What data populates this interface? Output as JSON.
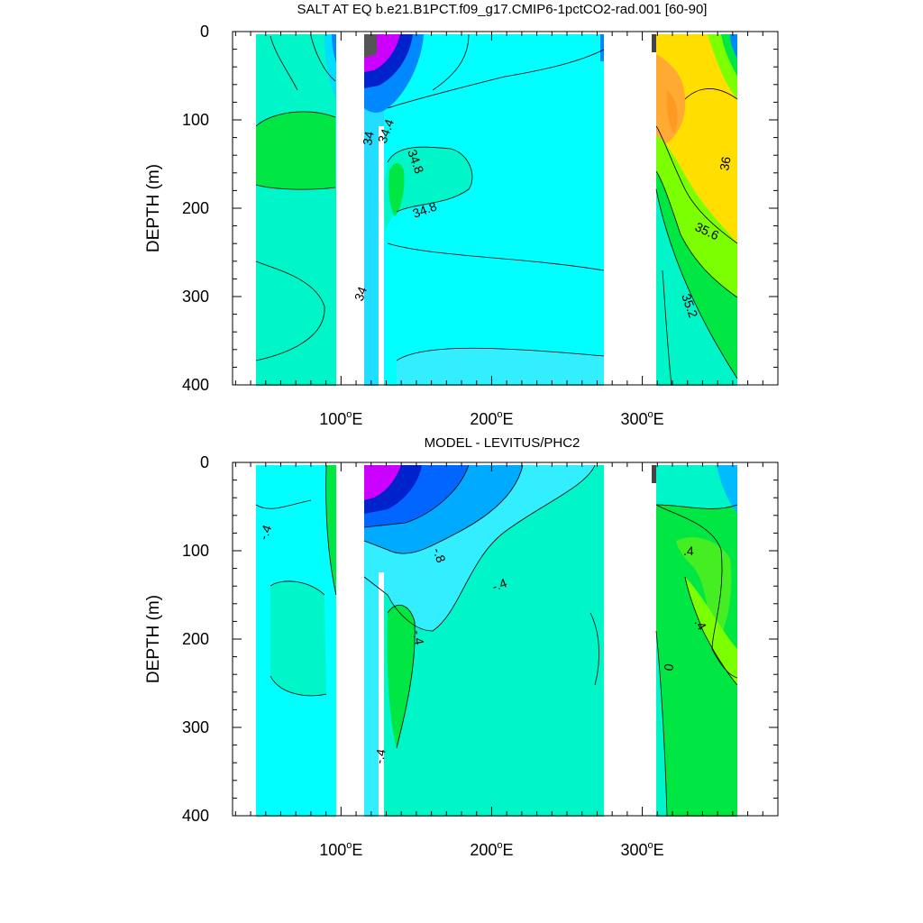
{
  "chart_data": [
    {
      "type": "heatmap",
      "title": "SALT AT EQ b.e21.B1PCT.f09_g17.CMIP6-1pctCO2-rad.001 [60-90]",
      "ylabel": "DEPTH (m)",
      "xlabel": "",
      "xlim": [
        28,
        390
      ],
      "ylim": [
        400,
        0
      ],
      "y_ticks": [
        "0",
        "100",
        "200",
        "300",
        "400"
      ],
      "x_ticks": [
        {
          "value": 100,
          "label": "100",
          "suffix": "E"
        },
        {
          "value": 200,
          "label": "200",
          "suffix": "E"
        },
        {
          "value": 300,
          "label": "300",
          "suffix": "E"
        }
      ],
      "contour_labels": [
        "34",
        "34.4",
        "34.8",
        "34.8",
        "34",
        "36",
        "35.6",
        "35.2"
      ],
      "colors": {
        "cyan": "#00ffff",
        "aqua_green": "#00f5c8",
        "green": "#00e642",
        "light_green": "#7cff00",
        "yellow": "#ffde00",
        "orange": "#ffaa33",
        "blue": "#0088ff",
        "dark_blue": "#0022cc",
        "magenta": "#cc00ff"
      }
    },
    {
      "type": "heatmap",
      "title": "MODEL - LEVITUS/PHC2",
      "ylabel": "DEPTH (m)",
      "xlabel": "",
      "xlim": [
        28,
        390
      ],
      "ylim": [
        400,
        0
      ],
      "y_ticks": [
        "0",
        "100",
        "200",
        "300",
        "400"
      ],
      "x_ticks": [
        {
          "value": 100,
          "label": "100",
          "suffix": "E"
        },
        {
          "value": 200,
          "label": "200",
          "suffix": "E"
        },
        {
          "value": 300,
          "label": "300",
          "suffix": "E"
        }
      ],
      "contour_labels": [
        "-.4",
        "-.8",
        "-.4",
        "-.4",
        "-.4",
        ".4",
        ".4",
        "0"
      ],
      "colors": {
        "cyan": "#00ffff",
        "aqua_green": "#00f5c8",
        "green": "#00e642",
        "light_green": "#7cff00",
        "blue": "#0088ff",
        "dark_blue": "#0022cc",
        "magenta": "#cc00ff"
      }
    }
  ]
}
